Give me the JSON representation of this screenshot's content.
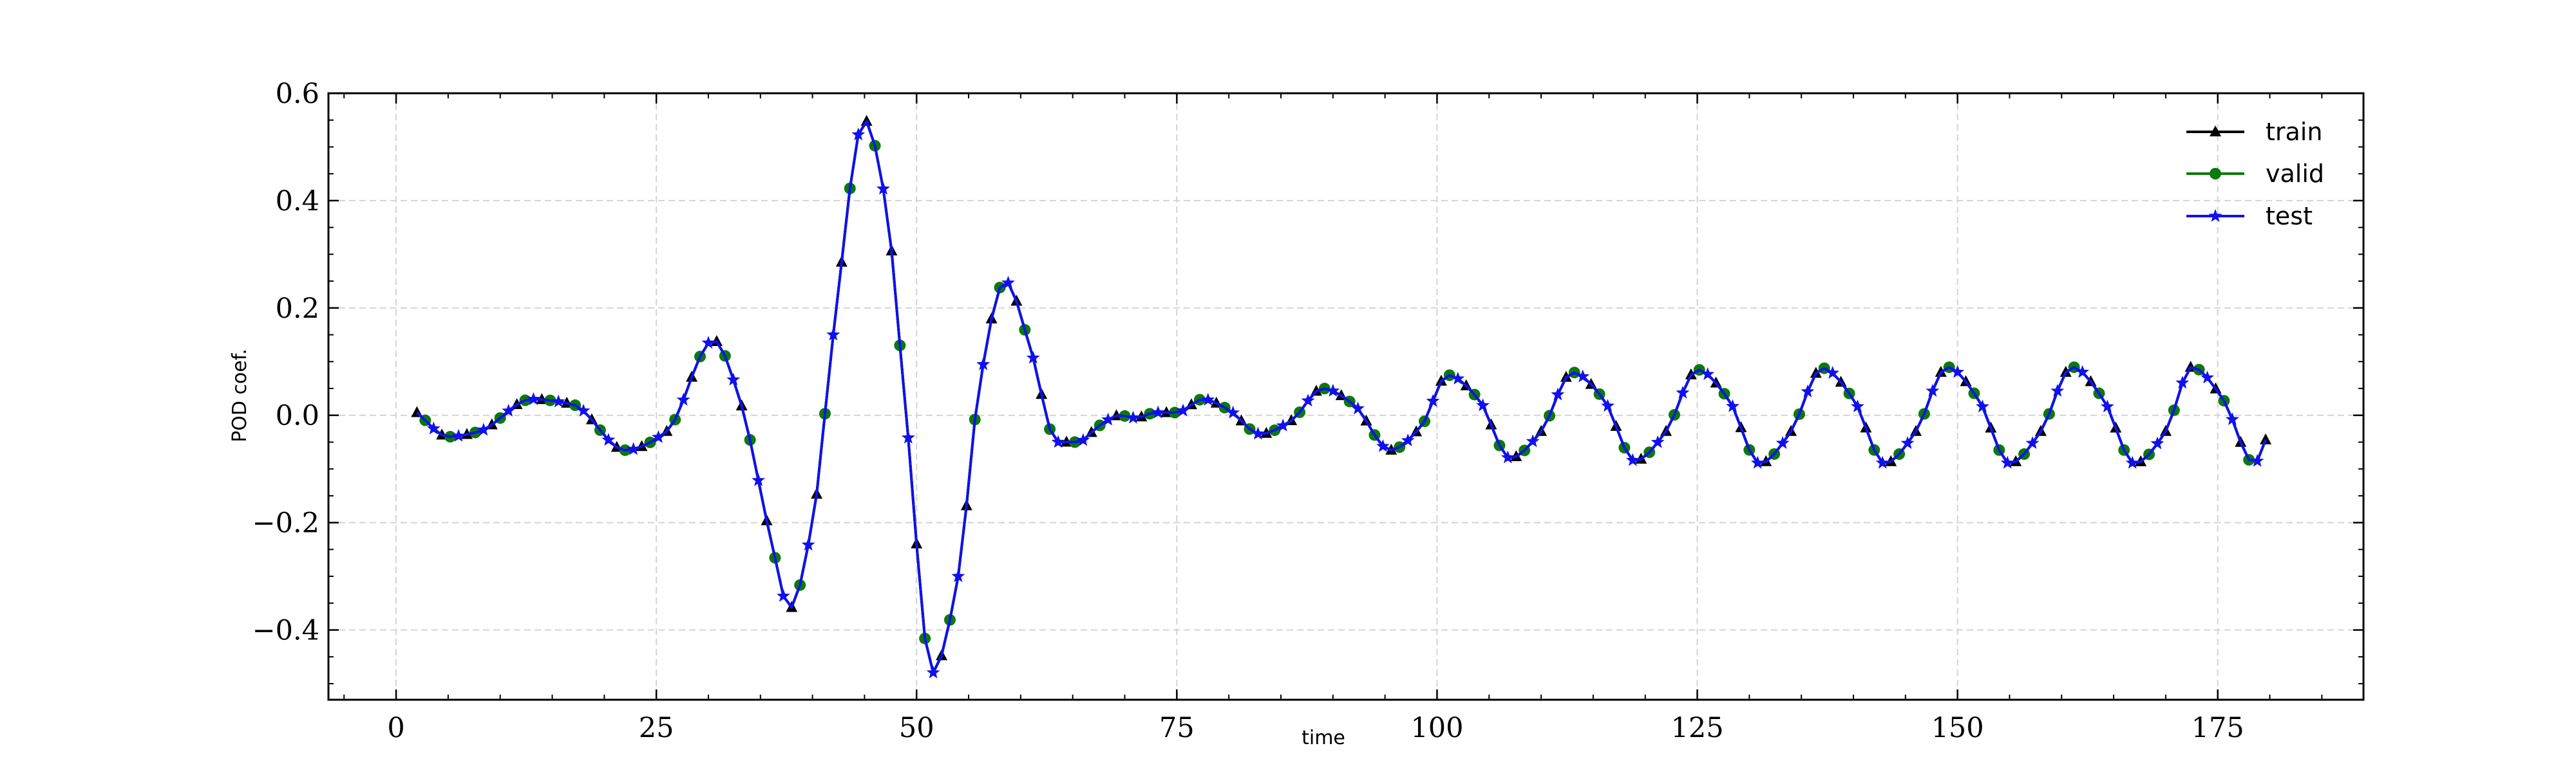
{
  "chart_data": {
    "type": "line",
    "title": "",
    "xlabel": "time",
    "ylabel": "POD coef.",
    "xlim": [
      -6.5,
      189
    ],
    "ylim": [
      -0.53,
      0.6
    ],
    "xticks": [
      0,
      25,
      50,
      75,
      100,
      125,
      150,
      175
    ],
    "xtick_labels": [
      "0",
      "25",
      "50",
      "75",
      "100",
      "125",
      "150",
      "175"
    ],
    "yticks": [
      -0.4,
      -0.2,
      0.0,
      0.2,
      0.4,
      0.6
    ],
    "ytick_labels": [
      "−0.4",
      "−0.2",
      "0.0",
      "0.2",
      "0.4",
      "0.6"
    ],
    "grid": true,
    "legend_position": "top-right",
    "x_start": 2,
    "x_end": 180,
    "sample_step": 0.8,
    "curve_knots": {
      "x": [
        2,
        5,
        8,
        13,
        17,
        22,
        26,
        30.5,
        33,
        36,
        37.8,
        40,
        42,
        45,
        47,
        49,
        51.5,
        54,
        56,
        58.5,
        61,
        63.5,
        65.5,
        67.5,
        69.5,
        71,
        73,
        75,
        77.5,
        80,
        83,
        86,
        89,
        92,
        95.5,
        98.5,
        101,
        104,
        107,
        110,
        113,
        116,
        119,
        122,
        125,
        128,
        131,
        134,
        137,
        140,
        143,
        146,
        149,
        152,
        155,
        158,
        161,
        164,
        167,
        170,
        172.5,
        175.5,
        178.5,
        180
      ],
      "y": [
        0.005,
        -0.04,
        -0.03,
        0.03,
        0.02,
        -0.065,
        -0.03,
        0.14,
        0.03,
        -0.23,
        -0.36,
        -0.2,
        0.15,
        0.55,
        0.4,
        0.0,
        -0.48,
        -0.3,
        0.05,
        0.25,
        0.12,
        -0.05,
        -0.05,
        -0.02,
        0.0,
        -0.005,
        0.005,
        0.005,
        0.03,
        0.01,
        -0.035,
        -0.01,
        0.05,
        0.02,
        -0.065,
        -0.02,
        0.075,
        0.03,
        -0.08,
        -0.03,
        0.08,
        0.03,
        -0.085,
        -0.03,
        0.085,
        0.03,
        -0.09,
        -0.03,
        0.088,
        0.03,
        -0.09,
        -0.03,
        0.09,
        0.03,
        -0.09,
        -0.03,
        0.09,
        0.03,
        -0.09,
        -0.03,
        0.09,
        0.03,
        -0.09,
        -0.025
      ]
    },
    "series": [
      {
        "name": "train",
        "color": "#000000",
        "marker": "triangle"
      },
      {
        "name": "valid",
        "color": "#0a7a0a",
        "marker": "circle"
      },
      {
        "name": "test",
        "color": "#1010ee",
        "marker": "star"
      }
    ]
  }
}
